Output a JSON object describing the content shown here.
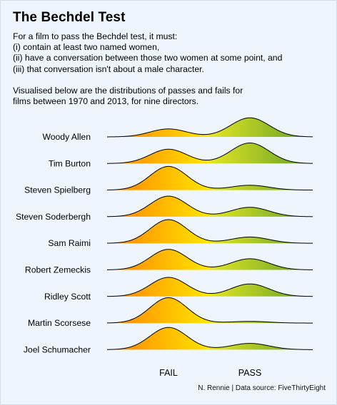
{
  "title": "The Bechdel Test",
  "intro": {
    "lines": [
      "For a film to pass the Bechdel test, it must:",
      "(i) contain at least two named women,",
      "(ii) have a conversation between those two women at some point, and",
      "(iii) that conversation isn't about a male character."
    ],
    "note_lines": [
      "Visualised below are the distributions of passes and fails for",
      "films between 1970 and 2013, for nine directors."
    ]
  },
  "caption": "N. Rennie | Data source: FiveThirtyEight",
  "colors": {
    "fail_start": "#ff7f00",
    "fail_end": "#ffe600",
    "pass_start": "#e4e622",
    "pass_end": "#5f9e2c",
    "background": "#eef5fc"
  },
  "chart_data": {
    "type": "ridgeline",
    "title": "",
    "xlabel": "",
    "ylabel": "",
    "x_ticks": [
      "FAIL",
      "PASS"
    ],
    "value_scale": "relative density (0-1)",
    "grid": false,
    "legend": "none",
    "series": [
      {
        "name": "Woody Allen",
        "fail": 0.28,
        "pass": 0.67
      },
      {
        "name": "Tim Burton",
        "fail": 0.5,
        "pass": 0.72
      },
      {
        "name": "Steven Spielberg",
        "fail": 0.83,
        "pass": 0.17
      },
      {
        "name": "Steven Soderbergh",
        "fail": 0.72,
        "pass": 0.33
      },
      {
        "name": "Sam Raimi",
        "fail": 0.83,
        "pass": 0.22
      },
      {
        "name": "Robert Zemeckis",
        "fail": 0.72,
        "pass": 0.39
      },
      {
        "name": "Ridley Scott",
        "fail": 0.67,
        "pass": 0.44
      },
      {
        "name": "Martin Scorsese",
        "fail": 0.89,
        "pass": 0.06
      },
      {
        "name": "Joel Schumacher",
        "fail": 0.78,
        "pass": 0.22
      }
    ]
  }
}
